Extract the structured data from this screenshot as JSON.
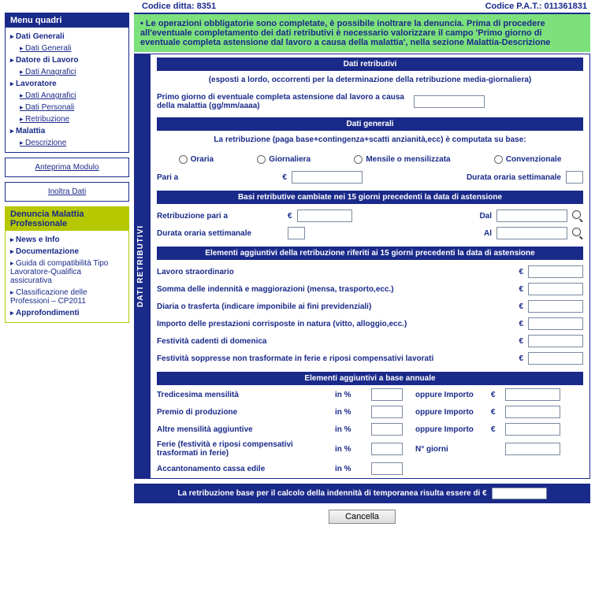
{
  "header": {
    "left": "Codice ditta: 8351",
    "right": "Codice P.A.T.: 011361831"
  },
  "menu": {
    "title": "Menu quadri",
    "items": [
      {
        "lvl": 1,
        "t": "Dati Generali"
      },
      {
        "lvl": 2,
        "t": "Dati Generali"
      },
      {
        "lvl": 1,
        "t": "Datore di Lavoro"
      },
      {
        "lvl": 2,
        "t": "Dati Anagrafici"
      },
      {
        "lvl": 1,
        "t": "Lavoratore"
      },
      {
        "lvl": 2,
        "t": "Dati Anagrafici"
      },
      {
        "lvl": 2,
        "t": "Dati Personali"
      },
      {
        "lvl": 2,
        "t": "Retribuzione"
      },
      {
        "lvl": 1,
        "t": "Malattia"
      },
      {
        "lvl": 2,
        "t": "Descrizione"
      }
    ]
  },
  "btn1": "Anteprima Modulo",
  "btn2": "Inoltra Dati",
  "infobox": {
    "title": "Denuncia Malattia Professionale",
    "items": [
      {
        "b": 1,
        "t": "News e Info"
      },
      {
        "b": 1,
        "t": "Documentazione"
      },
      {
        "b": 0,
        "t": "Guida di compatibilità Tipo Lavoratore-Qualifica assicurativa"
      },
      {
        "b": 0,
        "t": "Classificazione delle Professioni – CP2011"
      },
      {
        "b": 1,
        "t": "Approfondimenti"
      }
    ]
  },
  "notice": "Le operazioni obbligatorie sono completate, è possibile inoltrare la denuncia. Prima di procedere all'eventuale completamento dei dati retributivi è necessario valorizzare il campo 'Primo giorno di eventuale completa astensione dal lavoro a causa della malattia', nella sezione Malattia-Descrizione",
  "sidelabel": "DATI RETRIBUTIVI",
  "sec1": {
    "head": "Dati retributivi",
    "sub": "(esposti a lordo, occorrenti per la determinazione della retribuzione media-giornaliera)"
  },
  "q_primo": "Primo giorno di eventuale completa astensione dal lavoro a causa della malattia (gg/mm/aaaa)",
  "sec2": {
    "head": "Dati generali",
    "sub": "La retribuzione (paga base+contingenza+scatti anzianità,ecc) è computata su base:"
  },
  "radios": [
    "Oraria",
    "Giornaliera",
    "Mensile o mensilizzata",
    "Convenzionale"
  ],
  "pari_a": "Pari a",
  "durata": "Durata oraria settimanale",
  "sec3": "Basi retributive cambiate nei 15 giorni precedenti la data di astensione",
  "retr_pari": "Retribuzione pari a",
  "dal": "Dal",
  "al": "Al",
  "sec4": "Elementi aggiuntivi della retribuzione riferiti ai 15 giorni precedenti la data di astensione",
  "add": [
    "Lavoro straordinario",
    "Somma delle indennità e maggiorazioni (mensa, trasporto,ecc.)",
    "Diaria o trasferta (indicare imponibile ai fini previdenziali)",
    "Importo delle prestazioni corrisposte in natura (vitto, alloggio,ecc.)",
    "Festività cadenti di domenica",
    "Festività soppresse non trasformate in ferie e riposi compensativi lavorati"
  ],
  "sec5": "Elementi aggiuntivi a base annuale",
  "ann": {
    "items": [
      {
        "l": "Tredicesima mensilità",
        "r": "oppure Importo",
        "euro": true
      },
      {
        "l": "Premio di produzione",
        "r": "oppure Importo",
        "euro": true
      },
      {
        "l": "Altre mensilità aggiuntive",
        "r": "oppure Importo",
        "euro": true
      },
      {
        "l": "Ferie (festività e riposi compensativi trasformati in ferie)",
        "r": "N° giorni",
        "euro": false
      },
      {
        "l": "Accantonamento cassa edile",
        "r": "",
        "euro": false
      }
    ],
    "inpct": "in %"
  },
  "summary": "La retribuzione base per il calcolo della indennità di temporanea risulta essere di €",
  "cancel": "Cancella"
}
